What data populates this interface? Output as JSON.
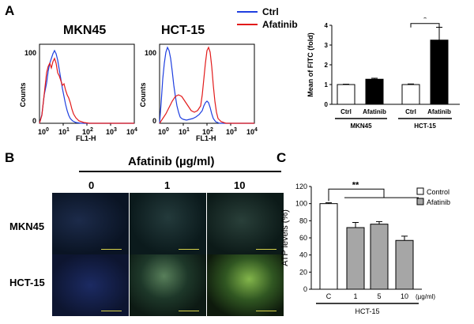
{
  "panels": {
    "a": "A",
    "b": "B",
    "c": "C"
  },
  "panelA": {
    "legend": {
      "ctrl": "Ctrl",
      "afatinib": "Afatinib",
      "ctrl_color": "#1f3fe0",
      "afatinib_color": "#e21a1a"
    },
    "hist1": {
      "title": "MKN45",
      "ylabel": "Counts",
      "xlabel": "FL1-H",
      "yticks": [
        "0",
        "100"
      ],
      "xticks": [
        "10",
        "10",
        "10",
        "10",
        "10"
      ],
      "xexps": [
        "0",
        "1",
        "2",
        "3",
        "4"
      ]
    },
    "hist2": {
      "title": "HCT-15",
      "ylabel": "Counts",
      "xlabel": "FL1-H",
      "yticks": [
        "0",
        "100"
      ],
      "xticks": [
        "10",
        "10",
        "10",
        "10",
        "10"
      ],
      "xexps": [
        "0",
        "1",
        "2",
        "3",
        "4"
      ]
    }
  },
  "panelC": {
    "group_label": "HCT-15",
    "xunit": "(µg/ml)"
  },
  "panelB": {
    "header": "Afatinib (µg/ml)",
    "cols": [
      "0",
      "1",
      "10"
    ],
    "rows": [
      "MKN45",
      "HCT-15"
    ]
  },
  "chart_data": [
    {
      "type": "bar",
      "title": "",
      "ylabel": "Mean of FITC (fold)",
      "ylim": [
        0,
        4
      ],
      "yticks": [
        "0",
        "1",
        "2",
        "3",
        "4"
      ],
      "categories": [
        "Ctrl",
        "Afatinib",
        "Ctrl",
        "Afatinib"
      ],
      "groups": [
        "MKN45",
        "HCT-15"
      ],
      "values": [
        1.0,
        1.27,
        1.0,
        3.25
      ],
      "errors": [
        0.02,
        0.05,
        0.03,
        0.65
      ],
      "bar_colors": [
        "#ffffff",
        "#000000",
        "#ffffff",
        "#000000"
      ],
      "annotations": [
        "*"
      ]
    },
    {
      "type": "bar",
      "title": "",
      "ylabel": "ATP levels (%)",
      "ylim": [
        0,
        120
      ],
      "yticks": [
        "0",
        "20",
        "40",
        "60",
        "80",
        "100",
        "120"
      ],
      "categories": [
        "C",
        "1",
        "5",
        "10"
      ],
      "values": [
        100,
        72,
        76,
        57
      ],
      "errors": [
        1,
        6,
        3,
        5
      ],
      "bar_colors": [
        "#ffffff",
        "#a6a6a6",
        "#a6a6a6",
        "#a6a6a6"
      ],
      "legend": [
        "Control",
        "Afatinib"
      ],
      "legend_placement": "top-right",
      "annotations": [
        "**"
      ]
    }
  ]
}
